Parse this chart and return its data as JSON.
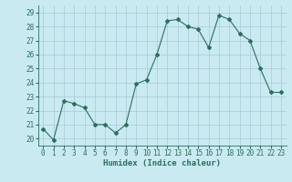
{
  "x": [
    0,
    1,
    2,
    3,
    4,
    5,
    6,
    7,
    8,
    9,
    10,
    11,
    12,
    13,
    14,
    15,
    16,
    17,
    18,
    19,
    20,
    21,
    22,
    23
  ],
  "y": [
    20.7,
    19.9,
    22.7,
    22.5,
    22.2,
    21.0,
    21.0,
    20.4,
    21.0,
    23.9,
    24.2,
    26.0,
    28.4,
    28.5,
    28.0,
    27.8,
    26.5,
    28.8,
    28.5,
    27.5,
    27.0,
    25.0,
    23.3,
    23.3
  ],
  "line_color": "#2d6e5e",
  "marker": "D",
  "marker_size": 2.0,
  "background_color": "#c8eaf0",
  "grid_color": "#aac8d8",
  "xlabel": "Humidex (Indice chaleur)",
  "ylim": [
    19.5,
    29.5
  ],
  "xlim": [
    -0.5,
    23.5
  ],
  "yticks": [
    20,
    21,
    22,
    23,
    24,
    25,
    26,
    27,
    28,
    29
  ],
  "xticks": [
    0,
    1,
    2,
    3,
    4,
    5,
    6,
    7,
    8,
    9,
    10,
    11,
    12,
    13,
    14,
    15,
    16,
    17,
    18,
    19,
    20,
    21,
    22,
    23
  ],
  "tick_fontsize": 5.5,
  "xlabel_fontsize": 6.5
}
